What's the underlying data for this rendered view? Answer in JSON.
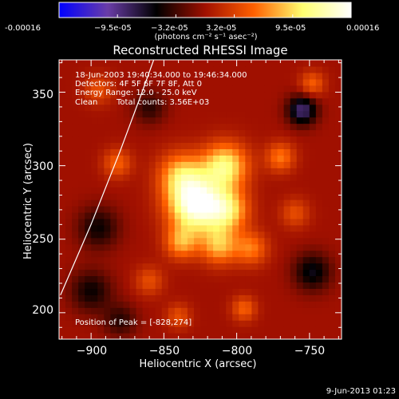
{
  "chart_data": {
    "type": "heatmap",
    "title": "Reconstructed RHESSI Image",
    "colorbar": {
      "tick_labels": [
        "-0.00016",
        "−9.5e-05",
        "−3.2e-05",
        "3.2e-05",
        "9.5e-05",
        "0.00016"
      ],
      "unit_label": "(photons cm⁻² s⁻¹ asec⁻²)",
      "range": [
        -0.00016,
        0.00016
      ],
      "colormap": [
        "#0000ff",
        "#6a3da8",
        "#000000",
        "#a01000",
        "#ff6000",
        "#ffff70",
        "#ffffff"
      ]
    },
    "xlabel": "Heliocentric X (arcsec)",
    "ylabel": "Heliocentric Y (arcsec)",
    "xlim": [
      -922,
      -728
    ],
    "ylim": [
      182,
      372
    ],
    "x_ticks": [
      -900,
      -850,
      -800,
      -750
    ],
    "y_ticks": [
      200,
      250,
      300,
      350
    ],
    "x_tick_labels": [
      "−900",
      "−850",
      "−800",
      "−750"
    ],
    "y_tick_labels": [
      "200",
      "250",
      "300",
      "350"
    ],
    "annotations": [
      "18-Jun-2003 19:40:34.000 to 19:46:34.000",
      "Detectors: 4F 5F 6F 7F 8F, Att 0",
      "Energy Range: 12.0 - 25.0 keV",
      "Clean",
      "Total counts: 3.56E+03",
      "Position of Peak = [-828,274]"
    ],
    "peak": {
      "x": -828,
      "y": 274
    },
    "sources": [
      {
        "x": -828,
        "y": 274,
        "value": 0.00016,
        "sigma": 13
      },
      {
        "x": -808,
        "y": 300,
        "value": 0.00011,
        "sigma": 11
      },
      {
        "x": -806,
        "y": 270,
        "value": 9e-05,
        "sigma": 10
      },
      {
        "x": -838,
        "y": 294,
        "value": 8e-05,
        "sigma": 11
      },
      {
        "x": -812,
        "y": 246,
        "value": 8e-05,
        "sigma": 9
      },
      {
        "x": -838,
        "y": 248,
        "value": 7e-05,
        "sigma": 8
      },
      {
        "x": -790,
        "y": 244,
        "value": 6e-05,
        "sigma": 8
      },
      {
        "x": -770,
        "y": 306,
        "value": 6e-05,
        "sigma": 7
      },
      {
        "x": -795,
        "y": 203,
        "value": 5e-05,
        "sigma": 6
      },
      {
        "x": -860,
        "y": 222,
        "value": 4e-05,
        "sigma": 7
      },
      {
        "x": -882,
        "y": 302,
        "value": 5e-05,
        "sigma": 7
      },
      {
        "x": -840,
        "y": 198,
        "value": 4e-05,
        "sigma": 6
      },
      {
        "x": -760,
        "y": 268,
        "value": 4e-05,
        "sigma": 7
      },
      {
        "x": -748,
        "y": 356,
        "value": 5e-05,
        "sigma": 6
      },
      {
        "x": -895,
        "y": 352,
        "value": 4e-05,
        "sigma": 7
      },
      {
        "x": -755,
        "y": 338,
        "value": -9e-05,
        "sigma": 7
      },
      {
        "x": -748,
        "y": 228,
        "value": -6e-05,
        "sigma": 9
      },
      {
        "x": -895,
        "y": 258,
        "value": -5e-05,
        "sigma": 10
      },
      {
        "x": -900,
        "y": 215,
        "value": -5e-05,
        "sigma": 10
      },
      {
        "x": -860,
        "y": 340,
        "value": -4e-05,
        "sigma": 8
      },
      {
        "x": -880,
        "y": 195,
        "value": -4e-05,
        "sigma": 8
      }
    ],
    "limb_curve": [
      {
        "x": -921,
        "y": 212
      },
      {
        "x": -900,
        "y": 260
      },
      {
        "x": -880,
        "y": 310
      },
      {
        "x": -865,
        "y": 350
      },
      {
        "x": -857,
        "y": 372
      }
    ]
  },
  "footer": {
    "timestamp": "9-Jun-2013 01:23"
  }
}
